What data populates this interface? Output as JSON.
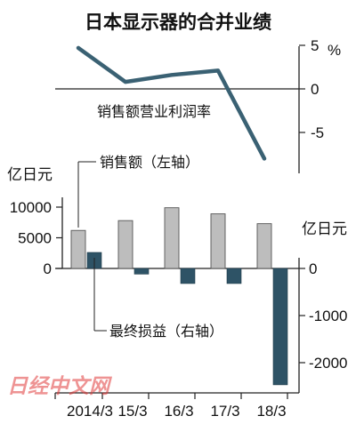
{
  "chart_data": [
    {
      "type": "line",
      "title": "日本显示器的合并业绩",
      "series": [
        {
          "name": "销售额营业利润率",
          "values": [
            4.7,
            0.8,
            1.6,
            2.1,
            -8.0
          ]
        }
      ],
      "x": [
        "2014/3",
        "15/3",
        "16/3",
        "17/3",
        "18/3"
      ],
      "ylim": [
        -10,
        5
      ],
      "yunit": "%",
      "yticks": [
        "5",
        "0",
        "-5"
      ],
      "colors": {
        "line": "#3a6173"
      }
    },
    {
      "type": "bar",
      "categories": [
        "2014/3",
        "15/3",
        "16/3",
        "17/3",
        "18/3"
      ],
      "series": [
        {
          "name": "销售额（左轴）",
          "axis": "left",
          "values": [
            6200,
            7800,
            9900,
            8900,
            7300
          ]
        },
        {
          "name": "最终损益（右轴）",
          "axis": "right",
          "values": [
            340,
            -120,
            -320,
            -320,
            -2470
          ]
        }
      ],
      "left_axis": {
        "unit": "亿日元",
        "ylim": [
          0,
          10000
        ],
        "ticks": [
          "10000",
          "5000",
          "0"
        ]
      },
      "right_axis": {
        "unit": "亿日元",
        "ylim": [
          -2500,
          400
        ],
        "ticks": [
          "0",
          "-1000",
          "-2000"
        ]
      },
      "colors": {
        "sales": "#bdbdbd",
        "net": "#2e5366"
      }
    }
  ],
  "watermark": "日经中文网"
}
